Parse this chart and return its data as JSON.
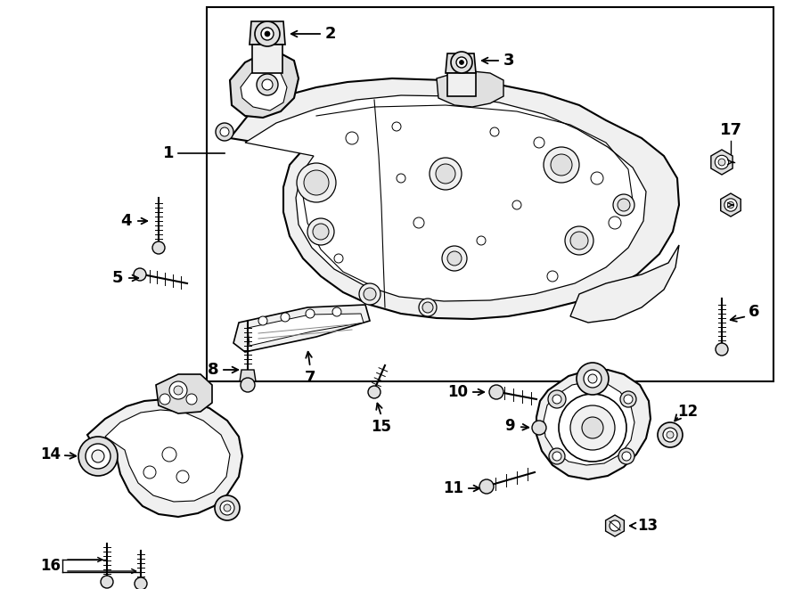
{
  "bg_color": "#ffffff",
  "line_color": "#000000",
  "fig_width": 9.0,
  "fig_height": 6.61,
  "dpi": 100,
  "label_fontsize": 13
}
